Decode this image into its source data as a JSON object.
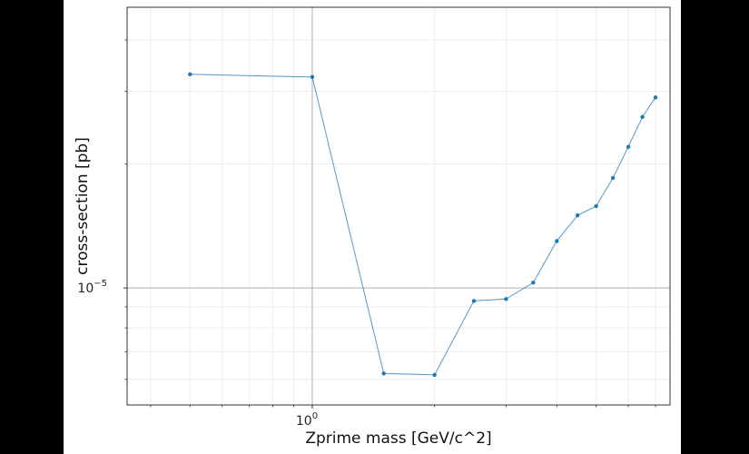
{
  "chart_data": {
    "type": "line",
    "title": "",
    "xlabel": "Zprime mass [GeV/c^2]",
    "ylabel": "cross-section [pb]",
    "xscale": "log",
    "yscale": "log",
    "xlim": [
      0.35,
      7.6
    ],
    "ylim": [
      5.2e-06,
      4.8e-05
    ],
    "xticks": [
      {
        "value": 1,
        "label": "10",
        "exp": "0"
      }
    ],
    "yticks": [
      {
        "value": 1e-05,
        "label": "10",
        "exp": "−5"
      }
    ],
    "grid": true,
    "color": "#1f77b4",
    "series": [
      {
        "x": [
          0.5,
          1.0,
          1.5,
          2.0,
          2.5,
          3.0,
          3.5,
          4.0,
          4.5,
          5.0,
          5.5,
          6.0,
          6.5,
          7.0
        ],
        "y": [
          3.3e-05,
          3.25e-05,
          6.2e-06,
          6.15e-06,
          9.3e-06,
          9.4e-06,
          1.03e-05,
          1.3e-05,
          1.5e-05,
          1.58e-05,
          1.85e-05,
          2.2e-05,
          2.6e-05,
          2.9e-05
        ]
      }
    ]
  }
}
